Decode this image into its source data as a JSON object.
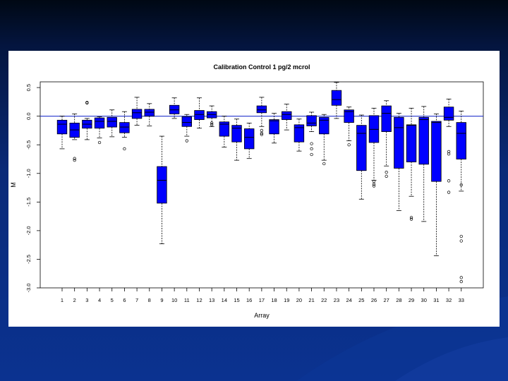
{
  "colors": {
    "box_fill": "#0000FF",
    "reference_line": "#2233CC",
    "axis": "#000000"
  },
  "chart_data": {
    "type": "boxplot",
    "title": "Calibration Control 1 pg/2 mcrol",
    "xlabel": "Array",
    "ylabel": "M",
    "ylim": [
      -3.0,
      0.6
    ],
    "yticks": [
      0.5,
      0.0,
      -0.5,
      -1.0,
      -1.5,
      -2.0,
      -2.5,
      -3.0
    ],
    "ytick_labels": [
      "0.5",
      "0.0",
      "-0.5",
      "-1.0",
      "-1.5",
      "-2.0",
      "-2.5",
      "-3.0"
    ],
    "reference_line": 0.0,
    "categories": [
      "1",
      "2",
      "3",
      "4",
      "5",
      "6",
      "7",
      "8",
      "9",
      "10",
      "11",
      "12",
      "13",
      "14",
      "15",
      "16",
      "17",
      "18",
      "19",
      "20",
      "21",
      "22",
      "23",
      "24",
      "25",
      "26",
      "27",
      "28",
      "29",
      "30",
      "31",
      "32",
      "33"
    ],
    "boxes": [
      {
        "array": "1",
        "wlo": -0.57,
        "q1": -0.31,
        "med": -0.14,
        "q3": -0.07,
        "whi": 0.0,
        "outliers": []
      },
      {
        "array": "2",
        "wlo": -0.41,
        "q1": -0.37,
        "med": -0.24,
        "q3": -0.12,
        "whi": 0.04,
        "outliers": [
          -0.74,
          -0.77
        ]
      },
      {
        "array": "3",
        "wlo": -0.41,
        "q1": -0.21,
        "med": -0.14,
        "q3": -0.07,
        "whi": -0.04,
        "outliers": [
          0.24,
          0.23
        ]
      },
      {
        "array": "4",
        "wlo": -0.38,
        "q1": -0.21,
        "med": -0.09,
        "q3": -0.03,
        "whi": -0.01,
        "outliers": [
          -0.46
        ]
      },
      {
        "array": "5",
        "wlo": -0.36,
        "q1": -0.19,
        "med": -0.09,
        "q3": -0.02,
        "whi": 0.11,
        "outliers": []
      },
      {
        "array": "6",
        "wlo": -0.37,
        "q1": -0.29,
        "med": -0.19,
        "q3": -0.11,
        "whi": 0.08,
        "outliers": [
          -0.57
        ]
      },
      {
        "array": "7",
        "wlo": -0.16,
        "q1": -0.04,
        "med": 0.06,
        "q3": 0.12,
        "whi": 0.33,
        "outliers": []
      },
      {
        "array": "8",
        "wlo": -0.17,
        "q1": 0.0,
        "med": 0.07,
        "q3": 0.12,
        "whi": 0.22,
        "outliers": []
      },
      {
        "array": "9",
        "wlo": -2.23,
        "q1": -1.52,
        "med": -1.12,
        "q3": -0.88,
        "whi": -0.35,
        "outliers": []
      },
      {
        "array": "10",
        "wlo": -0.04,
        "q1": 0.04,
        "med": 0.11,
        "q3": 0.19,
        "whi": 0.32,
        "outliers": []
      },
      {
        "array": "11",
        "wlo": -0.35,
        "q1": -0.18,
        "med": -0.11,
        "q3": -0.01,
        "whi": 0.03,
        "outliers": [
          -0.43
        ]
      },
      {
        "array": "12",
        "wlo": -0.21,
        "q1": -0.06,
        "med": 0.03,
        "q3": 0.1,
        "whi": 0.32,
        "outliers": []
      },
      {
        "array": "13",
        "wlo": -0.18,
        "q1": -0.03,
        "med": 0.03,
        "q3": 0.08,
        "whi": 0.18,
        "outliers": [
          -0.12,
          -0.15
        ]
      },
      {
        "array": "14",
        "wlo": -0.54,
        "q1": -0.35,
        "med": -0.14,
        "q3": -0.1,
        "whi": 0.0,
        "outliers": []
      },
      {
        "array": "15",
        "wlo": -0.77,
        "q1": -0.45,
        "med": -0.21,
        "q3": -0.16,
        "whi": -0.05,
        "outliers": []
      },
      {
        "array": "16",
        "wlo": -0.74,
        "q1": -0.57,
        "med": -0.37,
        "q3": -0.22,
        "whi": -0.12,
        "outliers": []
      },
      {
        "array": "17",
        "wlo": -0.18,
        "q1": 0.06,
        "med": 0.11,
        "q3": 0.18,
        "whi": 0.33,
        "outliers": [
          -0.25,
          -0.32,
          -0.3
        ]
      },
      {
        "array": "18",
        "wlo": -0.47,
        "q1": -0.31,
        "med": -0.08,
        "q3": -0.06,
        "whi": 0.05,
        "outliers": []
      },
      {
        "array": "19",
        "wlo": -0.24,
        "q1": -0.06,
        "med": 0.03,
        "q3": 0.08,
        "whi": 0.21,
        "outliers": []
      },
      {
        "array": "20",
        "wlo": -0.61,
        "q1": -0.45,
        "med": -0.2,
        "q3": -0.15,
        "whi": -0.05,
        "outliers": []
      },
      {
        "array": "21",
        "wlo": -0.27,
        "q1": -0.17,
        "med": -0.12,
        "q3": 0.01,
        "whi": 0.07,
        "outliers": [
          -0.48,
          -0.57,
          -0.67
        ]
      },
      {
        "array": "22",
        "wlo": -0.77,
        "q1": -0.31,
        "med": -0.07,
        "q3": -0.02,
        "whi": 0.03,
        "outliers": [
          -0.83
        ]
      },
      {
        "array": "23",
        "wlo": -0.04,
        "q1": 0.19,
        "med": 0.29,
        "q3": 0.45,
        "whi": 0.59,
        "outliers": []
      },
      {
        "array": "24",
        "wlo": -0.43,
        "q1": -0.11,
        "med": 0.08,
        "q3": 0.11,
        "whi": 0.16,
        "outliers": [
          -0.5
        ]
      },
      {
        "array": "25",
        "wlo": -1.45,
        "q1": -0.95,
        "med": -0.3,
        "q3": -0.16,
        "whi": 0.02,
        "outliers": []
      },
      {
        "array": "26",
        "wlo": -1.12,
        "q1": -0.46,
        "med": -0.23,
        "q3": 0.01,
        "whi": 0.14,
        "outliers": [
          -1.14,
          -1.19,
          -1.22
        ]
      },
      {
        "array": "27",
        "wlo": -0.87,
        "q1": -0.27,
        "med": 0.05,
        "q3": 0.18,
        "whi": 0.27,
        "outliers": [
          -0.98,
          -1.05
        ]
      },
      {
        "array": "28",
        "wlo": -1.65,
        "q1": -0.91,
        "med": -0.2,
        "q3": -0.02,
        "whi": 0.05,
        "outliers": []
      },
      {
        "array": "29",
        "wlo": -1.4,
        "q1": -0.8,
        "med": -0.16,
        "q3": -0.15,
        "whi": 0.14,
        "outliers": [
          -1.77,
          -1.8
        ]
      },
      {
        "array": "30",
        "wlo": -1.84,
        "q1": -0.84,
        "med": -0.06,
        "q3": -0.02,
        "whi": 0.17,
        "outliers": []
      },
      {
        "array": "31",
        "wlo": -2.44,
        "q1": -1.14,
        "med": -0.11,
        "q3": -0.09,
        "whi": 0.04,
        "outliers": []
      },
      {
        "array": "32",
        "wlo": -0.18,
        "q1": -0.07,
        "med": -0.02,
        "q3": 0.16,
        "whi": 0.3,
        "outliers": [
          -0.62,
          -0.66,
          -1.13,
          -1.33
        ]
      },
      {
        "array": "33",
        "wlo": -1.31,
        "q1": -0.75,
        "med": -0.3,
        "q3": -0.11,
        "whi": 0.09,
        "outliers": [
          -1.2,
          -2.1,
          -2.18,
          -2.82,
          -2.89
        ]
      }
    ]
  }
}
